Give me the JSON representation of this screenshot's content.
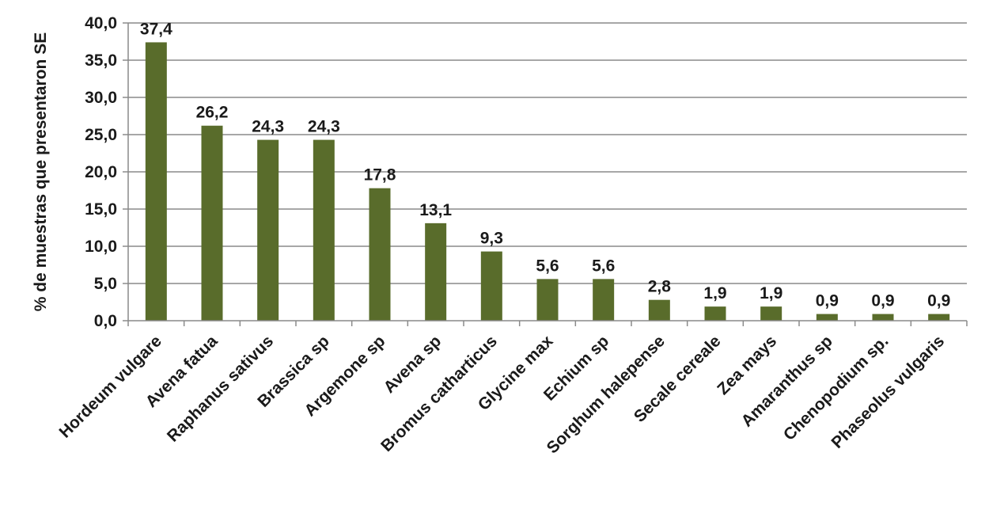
{
  "chart_data": {
    "type": "bar",
    "title": "",
    "xlabel": "",
    "ylabel": "% de muestras que presentaron SE",
    "ylim": [
      0,
      40
    ],
    "yticks": [
      "0,0",
      "5,0",
      "10,0",
      "15,0",
      "20,0",
      "25,0",
      "30,0",
      "35,0",
      "40,0"
    ],
    "grid": true,
    "legend": "none",
    "bar_color": "#596c2b",
    "categories": [
      "Hordeum vulgare",
      "Avena fatua",
      "Raphanus sativus",
      "Brassica sp",
      "Argemone sp",
      "Avena sp",
      "Bromus catharticus",
      "Glycine max",
      "Echium sp",
      "Sorghum halepense",
      "Secale cereale",
      "Zea mays",
      "Amaranthus sp",
      "Chenopodium sp.",
      "Phaseolus vulgaris"
    ],
    "values": [
      37.4,
      26.2,
      24.3,
      24.3,
      17.8,
      13.1,
      9.3,
      5.6,
      5.6,
      2.8,
      1.9,
      1.9,
      0.9,
      0.9,
      0.9
    ],
    "data_labels": [
      "37,4",
      "26,2",
      "24,3",
      "24,3",
      "17,8",
      "13,1",
      "9,3",
      "5,6",
      "5,6",
      "2,8",
      "1,9",
      "1,9",
      "0,9",
      "0,9",
      "0,9"
    ]
  }
}
